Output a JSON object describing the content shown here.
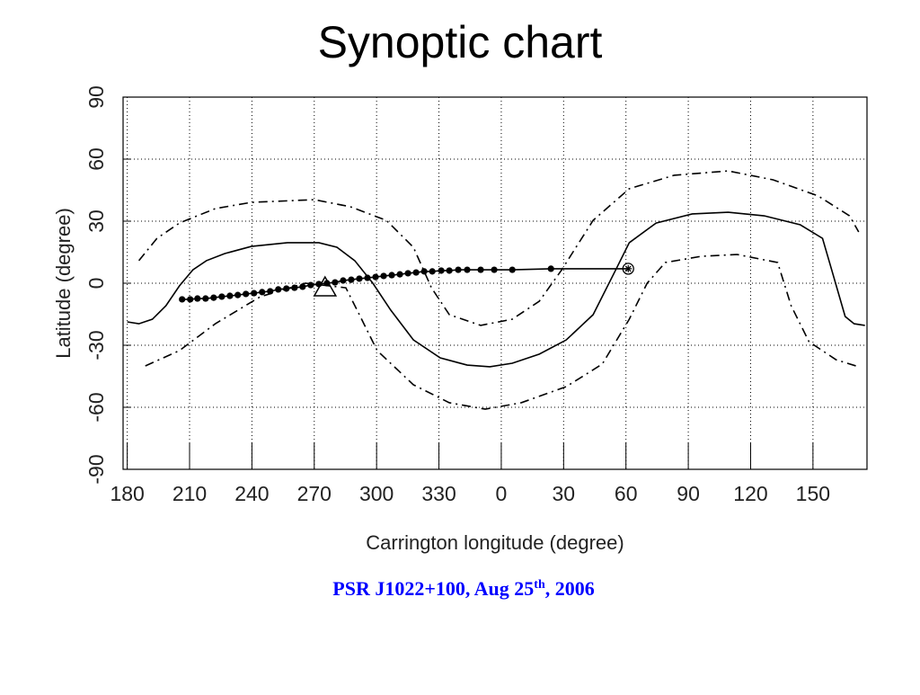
{
  "chart_data": {
    "type": "line",
    "title": "Synoptic chart",
    "xlabel": "Carrington longitude (degree)",
    "ylabel": "Latitude (degree)",
    "caption": {
      "before": "PSR J1022+100, Aug 25",
      "sup": "th",
      "after": ", 2006",
      "color": "#0000ff"
    },
    "xlim": [
      178,
      536
    ],
    "ylim": [
      -90,
      90
    ],
    "xticks": [
      180,
      210,
      240,
      270,
      300,
      330,
      {
        "value": 360,
        "label": "0"
      },
      {
        "value": 390,
        "label": "30"
      },
      {
        "value": 420,
        "label": "60"
      },
      {
        "value": 450,
        "label": "90"
      },
      {
        "value": 480,
        "label": "120"
      },
      {
        "value": 510,
        "label": "150"
      }
    ],
    "yticks": [
      -90,
      -60,
      -30,
      0,
      30,
      60,
      90
    ],
    "grid": true,
    "series": [
      {
        "color": "#000000",
        "style": "solid",
        "marker": "none",
        "x": [
          180,
          185.6,
          192.1,
          198.6,
          205.1,
          211.6,
          218.1,
          226.8,
          239.7,
          257.1,
          272.2,
          280.9,
          289.5,
          298.2,
          306.8,
          317.7,
          330.6,
          343.6,
          354.5,
          365.3,
          378.3,
          391.3,
          404.2,
          415.1,
          421.6,
          434.5,
          451.9,
          469.2,
          486.5,
          503.8,
          514.6,
          519.0,
          525.5,
          529.8,
          535.0
        ],
        "values": [
          -18.7,
          -19.6,
          -17.4,
          -10.9,
          -1.3,
          6.5,
          10.9,
          14.3,
          17.8,
          19.6,
          19.6,
          17.4,
          10.9,
          0,
          -13,
          -27.4,
          -36.1,
          -39.6,
          -40.4,
          -38.7,
          -34.3,
          -27.4,
          -15.2,
          6.5,
          19.6,
          29.1,
          33.5,
          34.3,
          32.6,
          28.3,
          21.7,
          6.5,
          -16.1,
          -19.6,
          -20.4
        ]
      },
      {
        "color": "#000000",
        "style": "dashdot",
        "marker": "none",
        "x": [
          185.6,
          194.3,
          205.1,
          222.4,
          239.7,
          270,
          287.3,
          304.7,
          317.7,
          326.4,
          335,
          350.1,
          365.3,
          378.3,
          389.1,
          404.2,
          421.6,
          443.2,
          469.2,
          490.8,
          512.5,
          527.6,
          532
        ],
        "values": [
          10.9,
          21.7,
          29.1,
          36.1,
          39.1,
          40.4,
          37,
          30.4,
          17.4,
          -2.2,
          -15.2,
          -20.4,
          -17.4,
          -8.7,
          6.5,
          30.4,
          45.7,
          52.2,
          54.3,
          50,
          42.2,
          32.6,
          24.8
        ]
      },
      {
        "color": "#000000",
        "style": "dashdot",
        "marker": "none",
        "x": [
          188.7,
          205.1,
          222.4,
          244.1,
          265.7,
          285.2,
          291.7,
          300.3,
          317.7,
          335,
          352.3,
          369.6,
          391.3,
          408.6,
          421.6,
          430.2,
          438.9,
          456.2,
          473.5,
          493,
          499.5,
          508.1,
          521.1,
          532
        ],
        "values": [
          -40,
          -32.6,
          -19.6,
          -6.5,
          0,
          -2.2,
          -15.2,
          -32.6,
          -49.1,
          -57.8,
          -60.9,
          -57.8,
          -50,
          -39.1,
          -17.4,
          0,
          10,
          13,
          13.9,
          10,
          -10.9,
          -28.3,
          -37,
          -40.4
        ]
      },
      {
        "color": "#000000",
        "style": "solid",
        "marker": "dot",
        "x": [
          206.4,
          210.3,
          213.8,
          217.7,
          221.6,
          225.5,
          229.4,
          233.2,
          237.1,
          241.0,
          244.9,
          248.8,
          252.7,
          256.6,
          260.5,
          264.4,
          268.3,
          272.2,
          276.1,
          280.0,
          283.9,
          287.8,
          291.7,
          295.6,
          299.5,
          303.4,
          307.3,
          311.2,
          315.1,
          319.0,
          322.9,
          326.8,
          331.1,
          335.0,
          339.3,
          343.6,
          350.1,
          356.6,
          365.3,
          383.9,
          421.1
        ],
        "values": [
          -7.8,
          -7.8,
          -7.4,
          -7.4,
          -7.0,
          -6.5,
          -6.1,
          -5.7,
          -5.2,
          -4.8,
          -4.3,
          -3.9,
          -3.0,
          -2.6,
          -2.2,
          -1.7,
          -0.9,
          -0.4,
          0,
          0.4,
          1.3,
          1.7,
          2.2,
          2.6,
          3.0,
          3.5,
          3.9,
          4.3,
          4.8,
          5.2,
          5.7,
          5.7,
          6.1,
          6.1,
          6.5,
          6.5,
          6.5,
          6.5,
          6.5,
          7.0,
          7.0
        ]
      }
    ],
    "points": [
      {
        "symbol": "triangle",
        "x": 275.2,
        "y": -2.2
      },
      {
        "symbol": "circled-star",
        "x": 421.1,
        "y": 7.0
      }
    ]
  }
}
